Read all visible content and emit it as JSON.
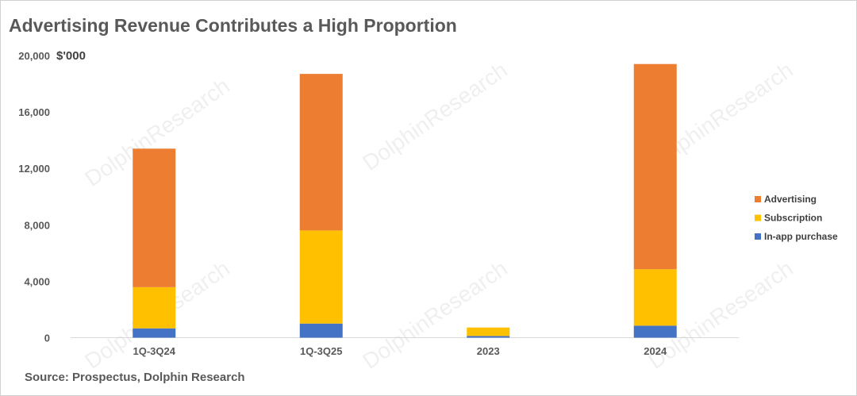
{
  "chart_data": {
    "type": "bar",
    "stacked": true,
    "title": "Advertising Revenue Contributes a High Proportion",
    "unit_label": "$'000",
    "categories": [
      "1Q-3Q24",
      "1Q-3Q25",
      "2023",
      "2024"
    ],
    "series": [
      {
        "name": "In-app purchase",
        "color": "#4472C4",
        "values": [
          660,
          1000,
          120,
          850
        ]
      },
      {
        "name": "Subscription",
        "color": "#FFC000",
        "values": [
          2920,
          6600,
          600,
          4000
        ]
      },
      {
        "name": "Advertising",
        "color": "#ED7D31",
        "values": [
          9820,
          11100,
          0,
          14550
        ]
      }
    ],
    "legend_order": [
      "Advertising",
      "Subscription",
      "In-app purchase"
    ],
    "ylim": [
      0,
      20000
    ],
    "yticks": [
      "0",
      "4,000",
      "8,000",
      "12,000",
      "16,000",
      "20,000"
    ],
    "ytick_values": [
      0,
      4000,
      8000,
      12000,
      16000,
      20000
    ],
    "legend_position": "right",
    "grid": false
  },
  "source": "Source:  Prospectus, Dolphin Research",
  "watermark": "DolphinResearch"
}
